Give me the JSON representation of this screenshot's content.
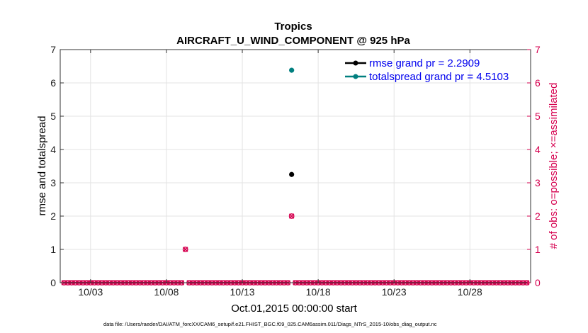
{
  "chart_data": {
    "type": "scatter",
    "title": "Tropics",
    "subtitle": "AIRCRAFT_U_WIND_COMPONENT @ 925 hPa",
    "xlabel": "Oct.01,2015 00:00:00 start",
    "ylabel": "rmse and totalspread",
    "ylabel_right": "# of obs: o=possible; ×=assimilated",
    "xlim": [
      1,
      32
    ],
    "ylim": [
      0,
      7
    ],
    "ylim_right": [
      0,
      7
    ],
    "x_ticks": [
      {
        "x": 3,
        "label": "10/03"
      },
      {
        "x": 8,
        "label": "10/08"
      },
      {
        "x": 13,
        "label": "10/13"
      },
      {
        "x": 18,
        "label": "10/18"
      },
      {
        "x": 23,
        "label": "10/23"
      },
      {
        "x": 28,
        "label": "10/28"
      }
    ],
    "y_ticks": [
      0,
      1,
      2,
      3,
      4,
      5,
      6,
      7
    ],
    "y_ticks_right": [
      0,
      1,
      2,
      3,
      4,
      5,
      6,
      7
    ],
    "grid": true,
    "legend_position": "top-right",
    "series": [
      {
        "name": "rmse grand pr = 2.2909",
        "color": "#000000",
        "marker": "dot",
        "points": [
          {
            "x": 16.25,
            "y": 3.25
          }
        ]
      },
      {
        "name": "totalspread grand pr = 4.5103",
        "color": "#007f7f",
        "marker": "dot",
        "points": [
          {
            "x": 16.25,
            "y": 6.38
          }
        ]
      }
    ],
    "obs_counts": {
      "color": "#d6004f",
      "x_start": 1.25,
      "x_step": 0.25,
      "count": 123,
      "nonzero": [
        {
          "x": 9.25,
          "possible": 1,
          "assimilated": 1
        },
        {
          "x": 16.25,
          "possible": 2,
          "assimilated": 2
        }
      ]
    },
    "footer": "data file: /Users/raeder/DAI/ATM_forcXX/CAM6_setup/f.e21.FHIST_BGC.f09_025.CAM6assim.011/Diags_NTrS_2015-10/obs_diag_output.nc"
  }
}
